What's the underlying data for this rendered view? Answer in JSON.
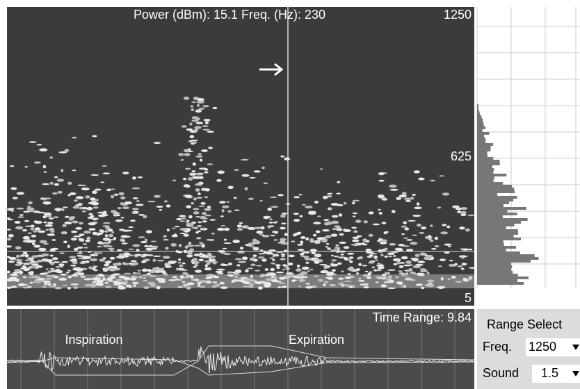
{
  "spectrogram": {
    "readout": "Power (dBm): 15.1 Freq. (Hz): 230",
    "axis_labels": [
      "1250",
      "625",
      "5"
    ]
  },
  "waveform": {
    "time_range": "Time Range: 9.84",
    "labels": [
      "Inspiration",
      "Expiration"
    ]
  },
  "range_select": {
    "title": "Range Select",
    "controls": [
      {
        "label": "Freq.",
        "value": "1250"
      },
      {
        "label": "Sound",
        "value": "1.5"
      }
    ]
  }
}
